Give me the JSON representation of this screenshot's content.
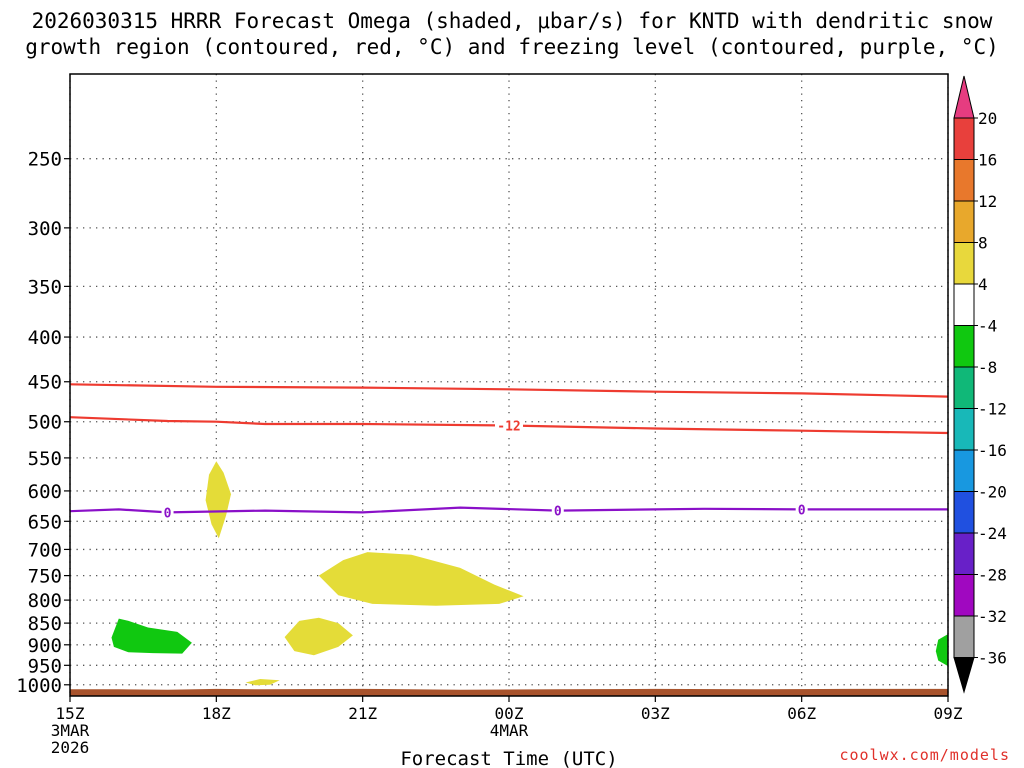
{
  "chart_data": {
    "type": "heatmap",
    "title": "2026030315 HRRR Forecast Omega (shaded, μbar/s) for KNTD with dendritic snow growth region (contoured, red, °C) and freezing level (contoured, purple, °C)",
    "title_lines": [
      "2026030315 HRRR Forecast Omega (shaded, μbar/s) for KNTD with dendritic snow",
      "growth region (contoured, red, °C) and freezing level (contoured, purple, °C)"
    ],
    "xlabel": "Forecast Time (UTC)",
    "ylabel": "",
    "x_range_hours": [
      0,
      18
    ],
    "y_range_hpa": [
      1030,
      200
    ],
    "y_ticks": [
      250,
      300,
      350,
      400,
      450,
      500,
      550,
      600,
      650,
      700,
      750,
      800,
      850,
      900,
      950,
      1000
    ],
    "x_ticks": [
      {
        "hour": 0,
        "lines": [
          "15Z",
          "3MAR",
          "2026"
        ]
      },
      {
        "hour": 3,
        "lines": [
          "18Z"
        ]
      },
      {
        "hour": 6,
        "lines": [
          "21Z"
        ]
      },
      {
        "hour": 9,
        "lines": [
          "00Z",
          "4MAR"
        ]
      },
      {
        "hour": 12,
        "lines": [
          "03Z"
        ]
      },
      {
        "hour": 15,
        "lines": [
          "06Z"
        ]
      },
      {
        "hour": 18,
        "lines": [
          "09Z"
        ]
      }
    ],
    "grid": true,
    "colorbar": {
      "position": "right",
      "labels": [
        "20",
        "16",
        "12",
        "8",
        "4",
        "-4",
        "-8",
        "-12",
        "-16",
        "-20",
        "-24",
        "-28",
        "-32",
        "-36"
      ],
      "levels": [
        20,
        16,
        12,
        8,
        4,
        -4,
        -8,
        -12,
        -16,
        -20,
        -24,
        -28,
        -32,
        -36
      ],
      "colors": [
        "#e63c80",
        "#e8403c",
        "#e8782c",
        "#e8a82c",
        "#e8d83c",
        "#ffffff",
        "#10c810",
        "#10b878",
        "#18b8b8",
        "#1898e0",
        "#2050e0",
        "#6820c8",
        "#a008c0",
        "#a0a0a0",
        "#000000"
      ]
    },
    "contours": [
      {
        "name": "dendritic-upper-contour",
        "color": "#ee3b30",
        "label": "",
        "points": [
          [
            0,
            453
          ],
          [
            3,
            456
          ],
          [
            6,
            457
          ],
          [
            9,
            459
          ],
          [
            12,
            462
          ],
          [
            15,
            464
          ],
          [
            18,
            468
          ]
        ]
      },
      {
        "name": "dendritic-lower-contour",
        "color": "#ee3b30",
        "label": "-12",
        "label_hour": 9,
        "points": [
          [
            0,
            494
          ],
          [
            2,
            499
          ],
          [
            3,
            500
          ],
          [
            4,
            503
          ],
          [
            6,
            503
          ],
          [
            9,
            505
          ],
          [
            12,
            509
          ],
          [
            15,
            512
          ],
          [
            18,
            515
          ]
        ]
      },
      {
        "name": "freezing-level-contour",
        "color": "#8a10c8",
        "label": "0",
        "label_hours": [
          2,
          10,
          15
        ],
        "points": [
          [
            0,
            633
          ],
          [
            1,
            630
          ],
          [
            2,
            635
          ],
          [
            4,
            632
          ],
          [
            6,
            635
          ],
          [
            8,
            627
          ],
          [
            10,
            632
          ],
          [
            12,
            630
          ],
          [
            13,
            629
          ],
          [
            15,
            630
          ],
          [
            18,
            630
          ]
        ]
      }
    ],
    "omega_regions": [
      {
        "name": "omega-region-yellow-1",
        "value_class": "4 to 8",
        "color": "#e4dc38",
        "points": [
          [
            2.78,
            615
          ],
          [
            2.85,
            575
          ],
          [
            3.0,
            555
          ],
          [
            3.15,
            572
          ],
          [
            3.3,
            605
          ],
          [
            3.2,
            640
          ],
          [
            3.05,
            680
          ],
          [
            2.9,
            655
          ],
          [
            2.78,
            615
          ]
        ]
      },
      {
        "name": "omega-region-yellow-2",
        "value_class": "4 to 8",
        "color": "#e4dc38",
        "points": [
          [
            5.1,
            750
          ],
          [
            5.6,
            720
          ],
          [
            6.1,
            705
          ],
          [
            7.0,
            710
          ],
          [
            8.0,
            735
          ],
          [
            8.7,
            768
          ],
          [
            9.3,
            792
          ],
          [
            8.8,
            808
          ],
          [
            7.5,
            812
          ],
          [
            6.2,
            808
          ],
          [
            5.5,
            790
          ],
          [
            5.1,
            750
          ]
        ]
      },
      {
        "name": "omega-region-yellow-3",
        "value_class": "4 to 8",
        "color": "#e4dc38",
        "points": [
          [
            4.4,
            882
          ],
          [
            4.7,
            845
          ],
          [
            5.1,
            838
          ],
          [
            5.5,
            850
          ],
          [
            5.8,
            878
          ],
          [
            5.5,
            905
          ],
          [
            5.0,
            925
          ],
          [
            4.6,
            915
          ],
          [
            4.4,
            882
          ]
        ]
      },
      {
        "name": "omega-region-yellow-4",
        "value_class": "4 to 8",
        "color": "#e4dc38",
        "points": [
          [
            3.6,
            994
          ],
          [
            3.9,
            985
          ],
          [
            4.3,
            988
          ],
          [
            4.1,
            1000
          ],
          [
            3.8,
            1001
          ],
          [
            3.6,
            994
          ]
        ]
      },
      {
        "name": "omega-region-green-1",
        "value_class": "-4 to -8",
        "color": "#10c810",
        "points": [
          [
            0.85,
            883
          ],
          [
            1.0,
            840
          ],
          [
            1.2,
            845
          ],
          [
            1.6,
            860
          ],
          [
            2.2,
            870
          ],
          [
            2.5,
            895
          ],
          [
            2.3,
            921
          ],
          [
            1.7,
            920
          ],
          [
            1.2,
            918
          ],
          [
            0.9,
            905
          ],
          [
            0.85,
            883
          ]
        ]
      },
      {
        "name": "omega-region-green-2",
        "value_class": "-4 to -8",
        "color": "#10c810",
        "points": [
          [
            18,
            875
          ],
          [
            17.8,
            888
          ],
          [
            17.75,
            915
          ],
          [
            17.8,
            938
          ],
          [
            18,
            952
          ]
        ]
      }
    ],
    "terrain": {
      "name": "terrain-surface",
      "color": "#a8532c",
      "points": [
        [
          0,
          1012
        ],
        [
          1,
          1012
        ],
        [
          2,
          1013
        ],
        [
          3,
          1011
        ],
        [
          4,
          1012
        ],
        [
          6,
          1011
        ],
        [
          8,
          1013
        ],
        [
          10,
          1012
        ],
        [
          12,
          1011
        ],
        [
          14,
          1012
        ],
        [
          16,
          1011
        ],
        [
          18,
          1011
        ]
      ]
    }
  },
  "credit": "coolwx.com/models"
}
